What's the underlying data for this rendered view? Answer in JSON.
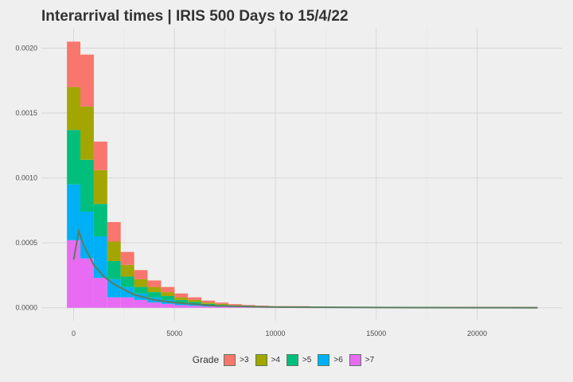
{
  "chart_data": {
    "type": "bar",
    "stacked": true,
    "title": "Interarrival times | IRIS 500 Days to 15/4/22",
    "xlabel": "",
    "ylabel": "",
    "xlim": [
      -1600,
      24200
    ],
    "ylim": [
      -0.0001,
      0.00215
    ],
    "x_ticks": [
      0,
      5000,
      10000,
      15000,
      20000
    ],
    "x_tick_labels": [
      "0",
      "5000",
      "10000",
      "15000",
      "20000"
    ],
    "y_ticks": [
      0,
      0.0005,
      0.001,
      0.0015,
      0.002
    ],
    "y_tick_labels": [
      "0.0000",
      "0.0005",
      "0.0010",
      "0.0015",
      "0.0020"
    ],
    "grid": true,
    "legend_position": "bottom",
    "legend_title": "Grade",
    "bins": [
      [
        -333,
        333
      ],
      [
        333,
        1000
      ],
      [
        1000,
        1667
      ],
      [
        1667,
        2333
      ],
      [
        2333,
        3000
      ],
      [
        3000,
        3667
      ],
      [
        3667,
        4333
      ],
      [
        4333,
        5000
      ],
      [
        5000,
        5667
      ],
      [
        5667,
        6333
      ],
      [
        6333,
        7000
      ],
      [
        7000,
        7667
      ],
      [
        7667,
        8333
      ],
      [
        8333,
        9000
      ],
      [
        9000,
        9667
      ],
      [
        9667,
        10333
      ],
      [
        10333,
        11000
      ],
      [
        11000,
        11667
      ],
      [
        11667,
        23000
      ]
    ],
    "series": [
      {
        "name": ">7",
        "color": "#e76bf3",
        "values": [
          0.00052,
          0.00038,
          0.00023,
          8e-05,
          8e-05,
          6e-05,
          4e-05,
          3e-05,
          2e-05,
          1.5e-05,
          1e-05,
          8e-06,
          5e-06,
          4e-06,
          3e-06,
          3e-06,
          3e-06,
          3e-06,
          2e-06
        ]
      },
      {
        "name": ">6",
        "color": "#00b0f6",
        "values": [
          0.00043,
          0.00036,
          0.00032,
          0.00014,
          8e-05,
          5e-05,
          4e-05,
          3e-05,
          2e-05,
          1.5e-05,
          1e-05,
          7e-06,
          5e-06,
          4e-06,
          3e-06,
          2e-06,
          2e-06,
          2e-06,
          1e-06
        ]
      },
      {
        "name": ">5",
        "color": "#00bf7d",
        "values": [
          0.00042,
          0.0004,
          0.00025,
          0.00014,
          8e-05,
          5e-05,
          4e-05,
          3e-05,
          2e-05,
          1.5e-05,
          1e-05,
          7e-06,
          5e-06,
          4e-06,
          3e-06,
          2e-06,
          2e-06,
          2e-06,
          1e-06
        ]
      },
      {
        "name": ">4",
        "color": "#a3a500",
        "values": [
          0.00033,
          0.00041,
          0.00026,
          0.00015,
          9e-05,
          6e-05,
          4e-05,
          3e-05,
          2e-05,
          1.5e-05,
          1e-05,
          8e-06,
          5e-06,
          4e-06,
          3e-06,
          2e-06,
          2e-06,
          2e-06,
          1e-06
        ]
      },
      {
        "name": ">3",
        "color": "#f8766d",
        "values": [
          0.00035,
          0.0004,
          0.00022,
          0.00015,
          0.0001,
          7e-05,
          5e-05,
          4e-05,
          3e-05,
          2e-05,
          1.5e-05,
          1e-05,
          8e-06,
          5e-06,
          4e-06,
          3e-06,
          3e-06,
          3e-06,
          2e-06
        ]
      }
    ],
    "density_curve": {
      "color": "#5a7d60",
      "x": [
        0,
        250,
        500,
        1000,
        1500,
        2000,
        3000,
        4000,
        5000,
        7000,
        10000,
        15000,
        20000,
        23000
      ],
      "y": [
        0.00037,
        0.00059,
        0.00048,
        0.00033,
        0.00024,
        0.00018,
        0.0001,
        6e-05,
        4e-05,
        1.5e-05,
        5e-06,
        1.5e-06,
        5e-07,
        2e-07
      ]
    }
  }
}
